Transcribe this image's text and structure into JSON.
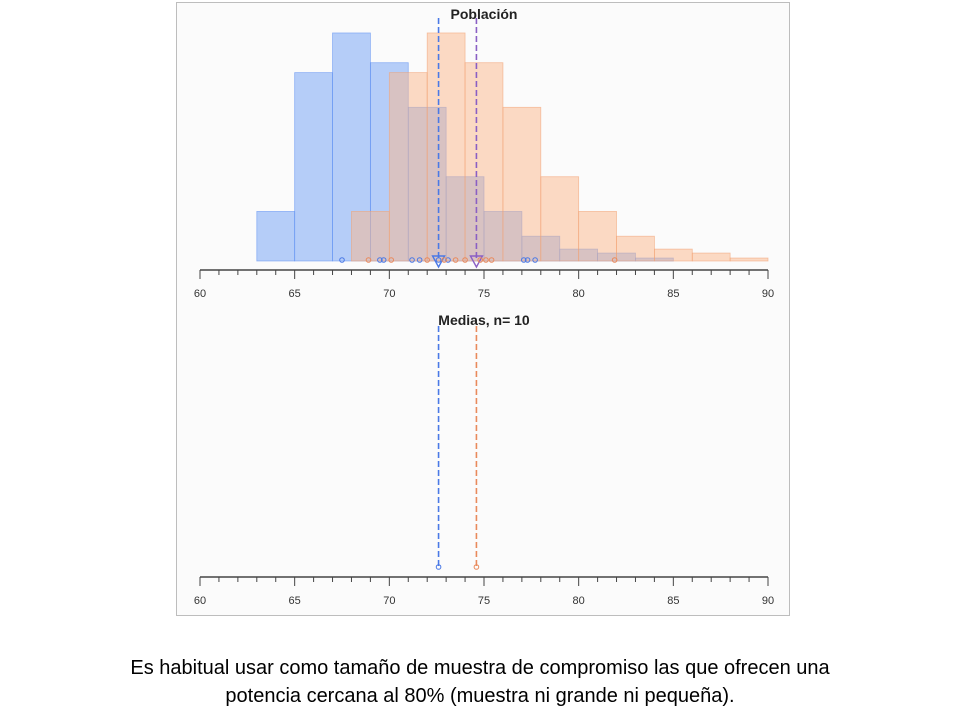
{
  "chart_data": [
    {
      "type": "histogram",
      "title": "Población",
      "xlim": [
        60,
        90
      ],
      "xticks": [
        60,
        65,
        70,
        75,
        80,
        85,
        90
      ],
      "colors": {
        "blue": "#6f9ff5",
        "orange": "#fbb78c",
        "blue_line": "#4a79e6",
        "orange_line": "#e98a5c",
        "purple_line": "#8a5fc4"
      },
      "series": [
        {
          "name": "",
          "color": "#6f9ff5",
          "bins": [
            {
              "from": 63,
              "to": 65,
              "count": 5
            },
            {
              "from": 65,
              "to": 67,
              "count": 19
            },
            {
              "from": 67,
              "to": 69,
              "count": 23
            },
            {
              "from": 69,
              "to": 71,
              "count": 20
            },
            {
              "from": 71,
              "to": 73,
              "count": 15.5
            },
            {
              "from": 73,
              "to": 75,
              "count": 8.5
            },
            {
              "from": 75,
              "to": 77,
              "count": 5
            },
            {
              "from": 77,
              "to": 79,
              "count": 2.5
            },
            {
              "from": 79,
              "to": 81,
              "count": 1.2
            },
            {
              "from": 81,
              "to": 83,
              "count": 0.8
            },
            {
              "from": 83,
              "to": 85,
              "count": 0.3
            }
          ],
          "mean": 72.6,
          "sample": [
            67.5,
            69.5,
            69.7,
            71.2,
            71.6,
            72.6,
            73.1,
            77.1,
            77.3,
            77.7
          ]
        },
        {
          "name": "",
          "color": "#fbb78c",
          "bins": [
            {
              "from": 68,
              "to": 70,
              "count": 5
            },
            {
              "from": 70,
              "to": 72,
              "count": 19
            },
            {
              "from": 72,
              "to": 74,
              "count": 23
            },
            {
              "from": 74,
              "to": 76,
              "count": 20
            },
            {
              "from": 76,
              "to": 78,
              "count": 15.5
            },
            {
              "from": 78,
              "to": 80,
              "count": 8.5
            },
            {
              "from": 80,
              "to": 82,
              "count": 5
            },
            {
              "from": 82,
              "to": 84,
              "count": 2.5
            },
            {
              "from": 84,
              "to": 86,
              "count": 1.2
            },
            {
              "from": 86,
              "to": 88,
              "count": 0.8
            },
            {
              "from": 88,
              "to": 90,
              "count": 0.3
            }
          ],
          "mean": 74.6,
          "sample": [
            68.9,
            70.1,
            72.0,
            72.9,
            73.5,
            74.0,
            74.8,
            75.1,
            75.4,
            81.9
          ]
        }
      ],
      "ylim": [
        0,
        23.5
      ]
    },
    {
      "type": "scatter",
      "title": "Medias, n= 10",
      "xlim": [
        60,
        90
      ],
      "xticks": [
        60,
        65,
        70,
        75,
        80,
        85,
        90
      ],
      "series": [
        {
          "name": "",
          "color": "#6f9ff5",
          "mean": 72.6,
          "points": [
            72.6
          ]
        },
        {
          "name": "",
          "color": "#fbb78c",
          "mean": 74.6,
          "points": [
            74.6
          ]
        }
      ]
    }
  ],
  "caption": {
    "line1": "Es habitual usar como tamaño de muestra de compromiso las que ofrecen una",
    "line2": "potencia cercana al 80% (muestra ni grande ni pequeña)."
  }
}
